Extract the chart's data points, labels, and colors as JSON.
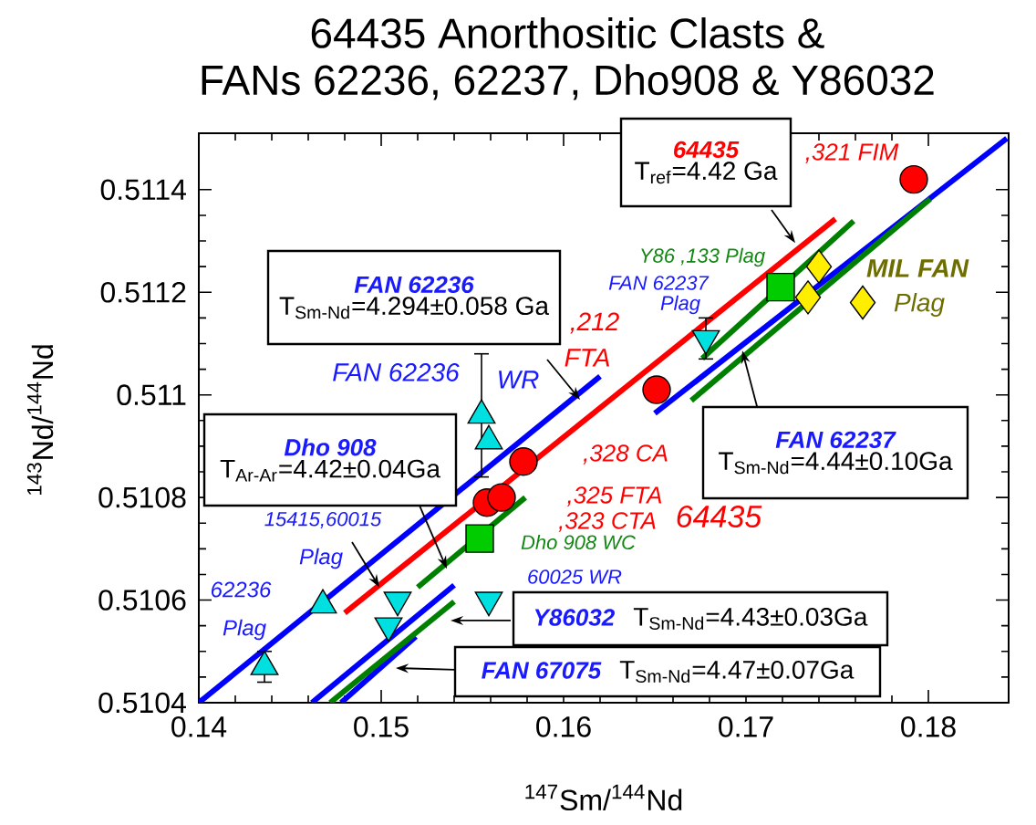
{
  "chart_data": {
    "type": "scatter",
    "title": "64435 Anorthositic Clasts &",
    "subtitle": "FANs 62236, 62237, Dho908 & Y86032",
    "xlabel": "$^{147}$Sm/$^{144}$Nd",
    "ylabel": "$^{143}$Nd/$^{144}$Nd",
    "xlim": [
      0.14,
      0.1844
    ],
    "ylim": [
      0.5104,
      0.51151
    ],
    "xticks": [
      0.14,
      0.15,
      0.16,
      0.17,
      0.18
    ],
    "yticks": [
      0.5104,
      0.5106,
      0.5108,
      0.511,
      0.5112,
      0.5114
    ],
    "series": [
      {
        "type": "line",
        "color": "#0000ff",
        "x": [
          0.14,
          0.162
        ],
        "values": [
          0.5104,
          0.511036
        ]
      },
      {
        "type": "line",
        "color": "#0000ff",
        "x": [
          0.165,
          0.1843
        ],
        "values": [
          0.510964,
          0.5115
        ]
      },
      {
        "type": "line",
        "color": "#ff0000",
        "x": [
          0.148,
          0.1749
        ],
        "values": [
          0.510575,
          0.511343
        ]
      },
      {
        "type": "line",
        "color": "#008000",
        "x": [
          0.167,
          0.1801
        ],
        "values": [
          0.510989,
          0.511382
        ]
      },
      {
        "type": "line",
        "color": "#008000",
        "x": [
          0.1676,
          0.1759
        ],
        "values": [
          0.511071,
          0.511339
        ]
      },
      {
        "type": "line",
        "color": "#008000",
        "x": [
          0.152,
          0.1579
        ],
        "values": [
          0.510625,
          0.5108
        ]
      },
      {
        "type": "line",
        "color": "#0000ff",
        "x": [
          0.1462,
          0.154
        ],
        "values": [
          0.5104,
          0.510629
        ]
      },
      {
        "type": "line",
        "color": "#0000ff",
        "x": [
          0.1478,
          0.1519
        ],
        "values": [
          0.5104,
          0.510529
        ]
      },
      {
        "type": "line",
        "color": "#008000",
        "x": [
          0.1472,
          0.154
        ],
        "values": [
          0.5104,
          0.510597
        ]
      },
      {
        "type": "scatter",
        "marker": "circle",
        "color": "#ff0000",
        "x": [
          0.1792,
          0.1651,
          0.1578,
          0.1558,
          0.1566
        ],
        "values": [
          0.51142,
          0.51101,
          0.51087,
          0.51079,
          0.5108
        ]
      },
      {
        "type": "scatter",
        "marker": "square",
        "color": "#00cc00",
        "x": [
          0.1719,
          0.1554
        ],
        "values": [
          0.51121,
          0.51072
        ]
      },
      {
        "type": "scatter",
        "marker": "diamond",
        "color": "#ffee00",
        "x": [
          0.174,
          0.1734,
          0.1764
        ],
        "values": [
          0.51125,
          0.51119,
          0.51118
        ]
      },
      {
        "type": "scatter",
        "marker": "triangle",
        "color": "#00e0e0",
        "x": [
          0.1436,
          0.1468,
          0.1555,
          0.1559
        ],
        "values": [
          0.51047,
          0.51059,
          0.51096,
          0.51091
        ],
        "errors": [
          3e-05,
          null,
          0.00012,
          null
        ]
      },
      {
        "type": "scatter",
        "marker": "triangle-down",
        "color": "#00e0e0",
        "x": [
          0.1509,
          0.1504,
          0.1559,
          0.1678
        ],
        "values": [
          0.5106,
          0.51055,
          0.5106,
          0.51111
        ],
        "errors": [
          null,
          null,
          null,
          4e-05
        ]
      }
    ],
    "annotations": [
      "64435",
      {
        "text": "T$_{ref}$=4.42 Ga",
        "x": 0.1727,
        "y": 0.511296
      },
      "FAN 62236",
      "T$_{Sm-Nd}$=4.294±0.058 Ga",
      "Dho 908",
      {
        "text": "T$_{Ar-Ar}$=4.42±0.04Ga",
        "x": 0.1536,
        "y": 0.510661
      },
      {
        "text": "FAN 62237",
        "x": 0.1698,
        "y": 0.511086
      },
      "T$_{Sm-Nd}$=4.44±0.10Ga",
      "Y86032",
      "T$_{Sm-Nd}$=4.43±0.03Ga",
      "FAN 67075",
      "T$_{Sm-Nd}$=4.47±0.07Ga",
      ",321 FIM",
      ",212",
      "FTA",
      ",328 CA",
      ",325 FTA",
      ",323 CTA",
      "64435",
      "Y86 ,133 Plag",
      "FAN 62237",
      "Plag",
      "MIL FAN",
      "Plag",
      "FAN 62236",
      "WR",
      {
        "text": "15415,60015",
        "x": 0.1499,
        "y": 0.510625
      },
      "Plag",
      "62236",
      "Plag",
      "Dho 908 WC",
      "60025 WR"
    ]
  }
}
